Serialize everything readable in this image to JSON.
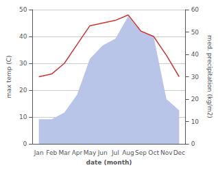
{
  "chart_data": {
    "type": "line",
    "xlabel": "date (month)",
    "ylabel": "max temp (C)",
    "y2label": "med. precipitation (kg/m2)",
    "categories": [
      "Jan",
      "Feb",
      "Mar",
      "Apr",
      "May",
      "Jun",
      "Jul",
      "Aug",
      "Sep",
      "Oct",
      "Nov",
      "Dec"
    ],
    "series": [
      {
        "type": "area",
        "color": "#b8c4e8",
        "axis": "y2",
        "values": [
          11,
          11,
          14,
          22,
          38,
          44,
          47,
          57,
          50,
          48,
          20,
          15
        ]
      },
      {
        "type": "line",
        "color": "#cc3333",
        "values": [
          25,
          26,
          30,
          37,
          44,
          45,
          46,
          48,
          42,
          40,
          33,
          25
        ]
      }
    ],
    "ylim": [
      0,
      50
    ],
    "yticks": [
      0,
      10,
      20,
      30,
      40,
      50
    ],
    "y2lim": [
      0,
      60
    ],
    "y2ticks": [
      0,
      10,
      20,
      30,
      40,
      50,
      60
    ],
    "grid": true
  }
}
